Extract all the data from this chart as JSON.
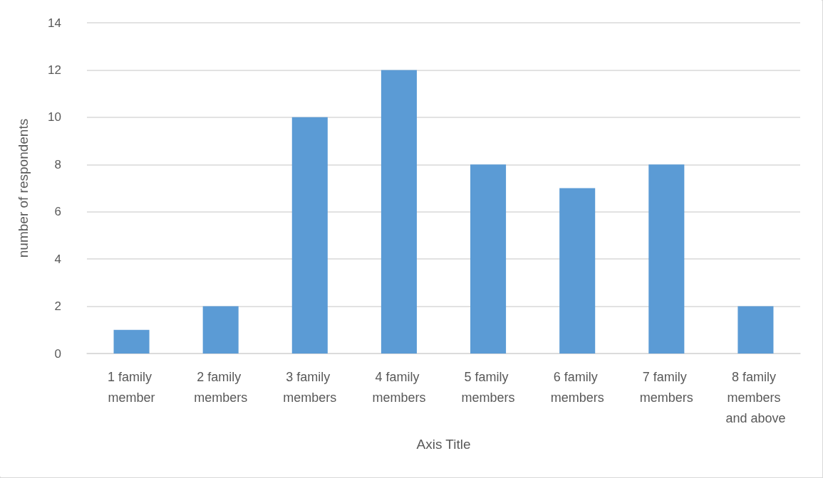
{
  "chart_data": {
    "type": "bar",
    "xlabel": "Axis Title",
    "ylabel": "number of respondents",
    "categories": [
      "1 family member",
      "2 family members",
      "3 family members",
      "4 family members",
      "5 family members",
      "6 family members",
      "7 family members",
      "8 family members and above"
    ],
    "values": [
      1,
      2,
      10,
      12,
      8,
      7,
      8,
      2
    ],
    "color": "#5b9bd5",
    "ylim": [
      0,
      14
    ],
    "yticks": [
      0,
      2,
      4,
      6,
      8,
      10,
      12,
      14
    ],
    "grid": "y"
  }
}
